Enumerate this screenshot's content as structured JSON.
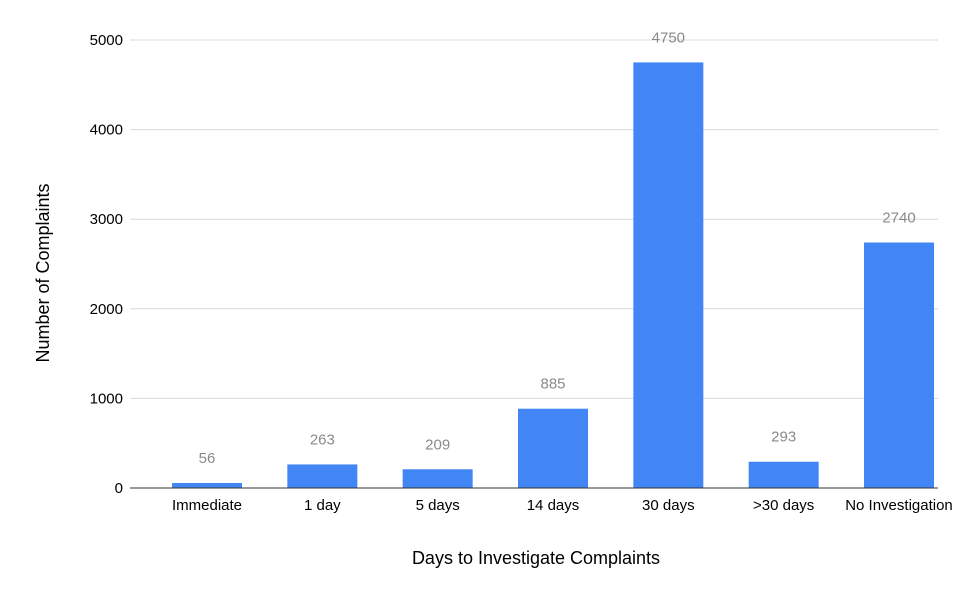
{
  "chart_data": {
    "type": "bar",
    "title": "",
    "xlabel": "Days to Investigate Complaints",
    "ylabel": "Number of Complaints",
    "categories": [
      "Immediate",
      "1 day",
      "5 days",
      "14 days",
      "30 days",
      ">30 days",
      "No Investigation"
    ],
    "values": [
      56,
      263,
      209,
      885,
      4750,
      293,
      2740
    ],
    "data_labels": [
      "56",
      "263",
      "209",
      "885",
      "4750",
      "293",
      "2740"
    ],
    "yticks": [
      0,
      1000,
      2000,
      3000,
      4000,
      5000
    ],
    "ytick_labels": [
      "0",
      "1000",
      "2000",
      "3000",
      "4000",
      "5000"
    ],
    "ylim": [
      0,
      5000
    ],
    "grid": true,
    "legend": "none",
    "colors": {
      "bar": "#4285f4",
      "grid": "#d9d9d9",
      "axis": "#333333",
      "data_label": "#8a8a8a",
      "text": "#000000"
    }
  }
}
